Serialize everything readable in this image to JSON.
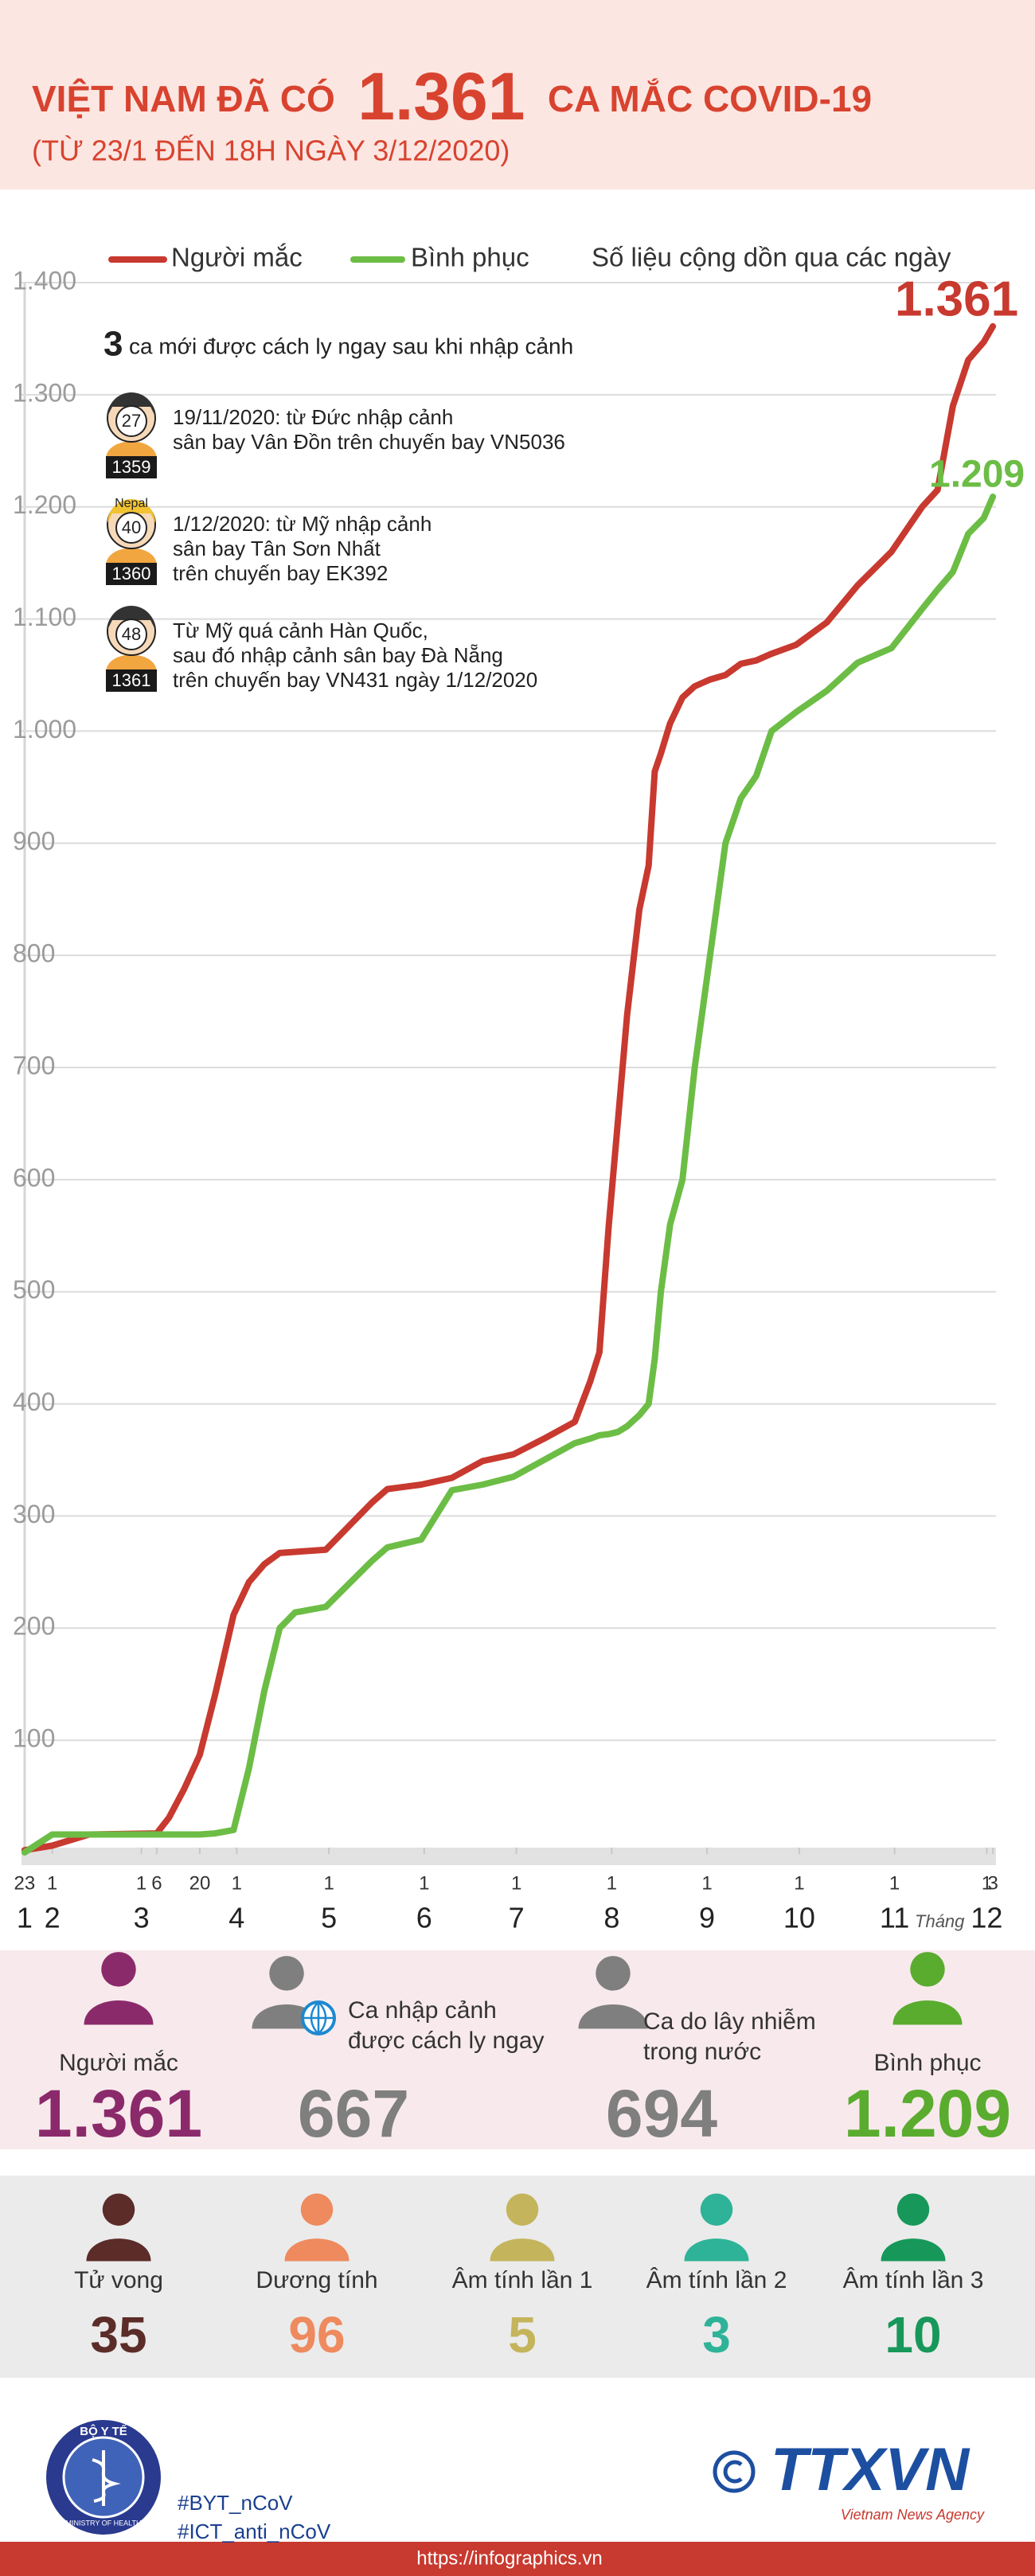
{
  "header": {
    "title_lead": "VIỆT NAM ĐÃ CÓ",
    "title_number": "1.361",
    "title_tail": "CA MẮC COVID-19",
    "subtitle": "(TỪ 23/1 ĐẾN 18H NGÀY 3/12/2020)"
  },
  "chart_data": {
    "type": "line",
    "note": "Số liệu cộng dồn qua các ngày",
    "x": [
      "23/1",
      "1/2",
      "13/2",
      "6/3",
      "10/3",
      "15/3",
      "20/3",
      "25/3",
      "31/3",
      "5/4",
      "10/4",
      "15/4",
      "20/4",
      "30/4",
      "15/5",
      "20/5",
      "31/5",
      "10/6",
      "20/6",
      "30/6",
      "10/7",
      "20/7",
      "25/7",
      "28/7",
      "31/7",
      "3/8",
      "6/8",
      "10/8",
      "13/8",
      "15/8",
      "17/8",
      "20/8",
      "24/8",
      "28/8",
      "2/9",
      "7/9",
      "12/9",
      "17/9",
      "22/9",
      "30/9",
      "10/10",
      "20/10",
      "31/10",
      "10/11",
      "15/11",
      "20/11",
      "25/11",
      "30/11",
      "3/12"
    ],
    "series": [
      {
        "name": "Người mắc",
        "color": "#c8392f",
        "end_label": "1.361",
        "values": [
          2,
          6,
          16,
          17,
          31,
          57,
          87,
          141,
          212,
          241,
          257,
          267,
          268,
          270,
          312,
          324,
          328,
          334,
          349,
          355,
          369,
          384,
          420,
          446,
          558,
          652,
          747,
          841,
          880,
          964,
          980,
          1007,
          1030,
          1040,
          1046,
          1050,
          1060,
          1063,
          1069,
          1077,
          1097,
          1130,
          1160,
          1200,
          1215,
          1290,
          1331,
          1347,
          1361
        ]
      },
      {
        "name": "Bình phục",
        "color": "#6cbd45",
        "end_label": "1.209",
        "values": [
          0,
          16,
          16,
          16,
          16,
          16,
          16,
          17,
          20,
          75,
          144,
          200,
          214,
          219,
          260,
          272,
          279,
          323,
          328,
          335,
          350,
          365,
          369,
          372,
          373,
          375,
          380,
          390,
          400,
          440,
          500,
          560,
          600,
          700,
          800,
          900,
          940,
          960,
          1000,
          1017,
          1036,
          1061,
          1074,
          1109,
          1126,
          1142,
          1176,
          1190,
          1209
        ]
      }
    ],
    "xlim": [
      "22/1",
      "4/12"
    ],
    "xticks": [
      {
        "value": "23/1",
        "label": "23"
      },
      {
        "value": "1/2",
        "label": "1"
      },
      {
        "value": "1/3",
        "label": "1"
      },
      {
        "value": "6/3",
        "label": "6"
      },
      {
        "value": "20/3",
        "label": "20"
      },
      {
        "value": "1/4",
        "label": "1"
      },
      {
        "value": "1/5",
        "label": "1"
      },
      {
        "value": "1/6",
        "label": "1"
      },
      {
        "value": "1/7",
        "label": "1"
      },
      {
        "value": "1/8",
        "label": "1"
      },
      {
        "value": "1/9",
        "label": "1"
      },
      {
        "value": "1/10",
        "label": "1"
      },
      {
        "value": "1/11",
        "label": "1"
      },
      {
        "value": "1/12",
        "label": "1"
      },
      {
        "value": "3/12",
        "label": "3"
      }
    ],
    "month_ticks": [
      {
        "value": "23/1",
        "label": "1"
      },
      {
        "value": "1/2",
        "label": "2"
      },
      {
        "value": "1/3",
        "label": "3"
      },
      {
        "value": "1/4",
        "label": "4"
      },
      {
        "value": "1/5",
        "label": "5"
      },
      {
        "value": "1/6",
        "label": "6"
      },
      {
        "value": "1/7",
        "label": "7"
      },
      {
        "value": "1/8",
        "label": "8"
      },
      {
        "value": "1/9",
        "label": "9"
      },
      {
        "value": "1/10",
        "label": "10"
      },
      {
        "value": "1/11",
        "label": "11"
      },
      {
        "value": "1/12",
        "label": "12"
      }
    ],
    "x_unit_label": "Tháng",
    "ylim": [
      0,
      1400
    ],
    "yticks": [
      100,
      200,
      300,
      400,
      500,
      600,
      700,
      800,
      900,
      {
        "value": 1000,
        "label": "1.000"
      },
      {
        "value": 1100,
        "label": "1.100"
      },
      {
        "value": 1200,
        "label": "1.200"
      },
      {
        "value": 1300,
        "label": "1.300"
      },
      {
        "value": 1400,
        "label": "1.400"
      }
    ],
    "grid": true,
    "annotation": {
      "count": "3",
      "text": "ca mới được cách ly ngay sau khi nhập cảnh",
      "patients": [
        {
          "age": "27",
          "id": "1359",
          "lines": [
            "19/11/2020: từ Đức nhập cảnh",
            "sân bay Vân Đồn trên chuyến bay VN5036"
          ]
        },
        {
          "age": "40",
          "tag": "Nepal",
          "id": "1360",
          "lines": [
            "1/12/2020: từ Mỹ nhập cảnh",
            "sân bay Tân Sơn Nhất",
            "trên chuyến bay EK392"
          ]
        },
        {
          "age": "48",
          "id": "1361",
          "lines": [
            "Từ Mỹ quá cảnh Hàn Quốc,",
            "sau đó nhập cảnh sân bay Đà Nẵng",
            "trên chuyến bay VN431 ngày 1/12/2020"
          ]
        }
      ]
    }
  },
  "summary": [
    {
      "label_lines": [
        "Người mắc"
      ],
      "value": "1.361",
      "color": "#8b2a6b"
    },
    {
      "label_lines": [
        "Ca nhập cảnh",
        "được cách ly ngay"
      ],
      "value": "667",
      "color": "#7f7f7f"
    },
    {
      "label_lines": [
        "Ca do lây nhiễm",
        "trong nước"
      ],
      "value": "694",
      "color": "#7f7f7f"
    },
    {
      "label_lines": [
        "Bình phục"
      ],
      "value": "1.209",
      "color": "#5aac2f"
    }
  ],
  "outcomes": [
    {
      "label": "Tử vong",
      "value": "35",
      "color": "#5b2c28"
    },
    {
      "label": "Dương tính",
      "value": "96",
      "color": "#ee8a5e"
    },
    {
      "label": "Âm tính lần 1",
      "value": "5",
      "color": "#c4b45c"
    },
    {
      "label": "Âm tính lần 2",
      "value": "3",
      "color": "#2eb398"
    },
    {
      "label": "Âm tính lần 3",
      "value": "10",
      "color": "#17985a"
    }
  ],
  "footer": {
    "ministry": "BỘ Y TẾ",
    "ministry_en": "MINISTRY OF HEALTH",
    "hashtags": [
      "#BYT_nCoV",
      "#ICT_anti_nCoV"
    ],
    "agency": "TTXVN",
    "agency_en": "Vietnam News Agency",
    "url": "https://infographics.vn"
  }
}
